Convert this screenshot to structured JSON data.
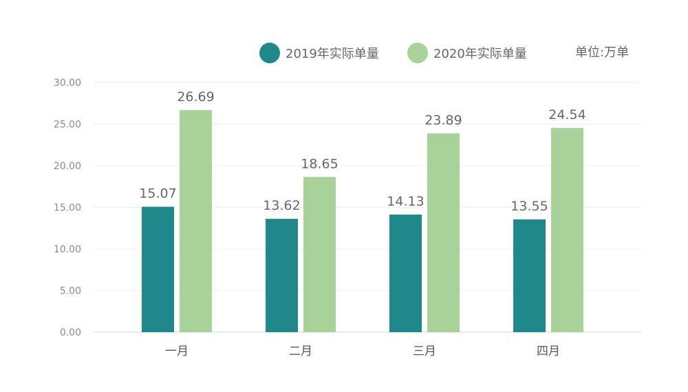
{
  "chart_data": {
    "type": "bar",
    "title": "",
    "unit_label": "单位:万单",
    "categories": [
      "一月",
      "二月",
      "三月",
      "四月"
    ],
    "series": [
      {
        "name": "2019年实际单量",
        "color": "#20878a",
        "values": [
          15.07,
          13.62,
          14.13,
          13.55
        ]
      },
      {
        "name": "2020年实际单量",
        "color": "#a9d29b",
        "values": [
          26.69,
          18.65,
          23.89,
          24.54
        ]
      }
    ],
    "yticks": [
      "0.00",
      "5.00",
      "10.00",
      "15.00",
      "20.00",
      "25.00",
      "30.00"
    ],
    "ylim": [
      0,
      30
    ],
    "grid": true,
    "legend_position": "top-right",
    "xlabel": "",
    "ylabel": ""
  }
}
